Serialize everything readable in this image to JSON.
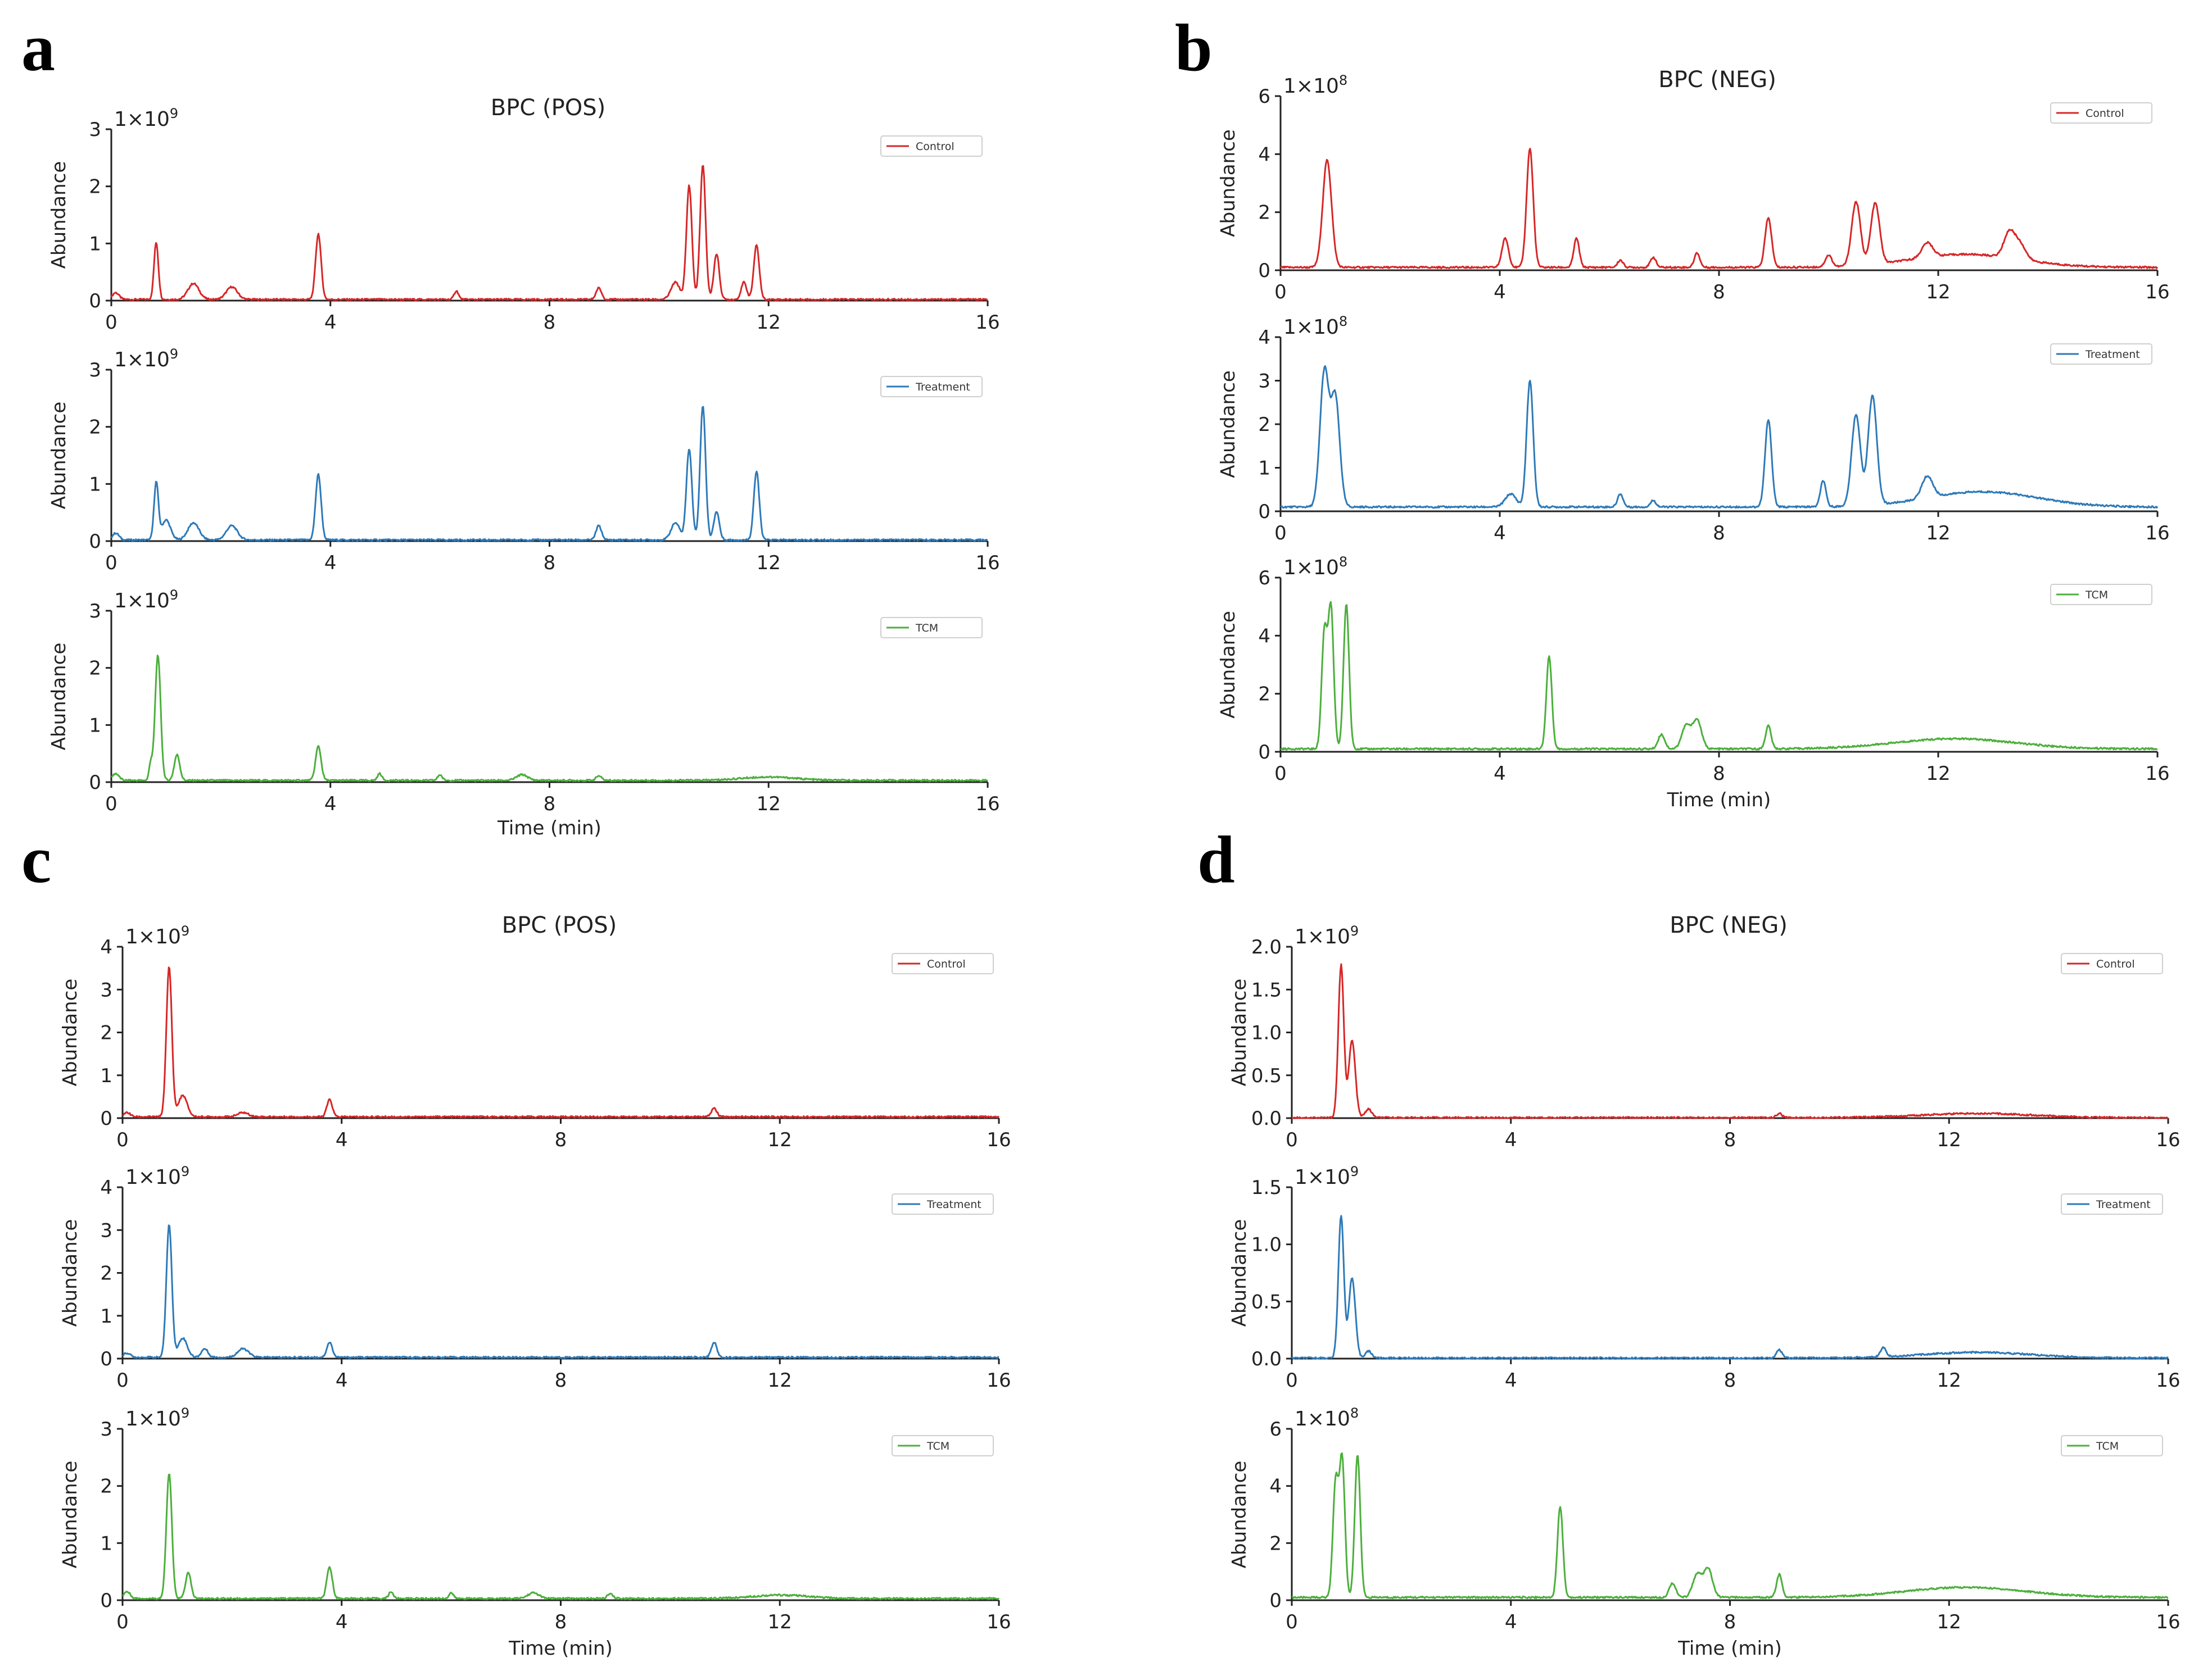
{
  "colors": {
    "Control": "#d62728",
    "Treatment": "#2e7ab8",
    "TCM": "#4caf3c",
    "axis": "#222222"
  },
  "chart_data": [
    {
      "panel": "a",
      "type": "line",
      "title": "BPC (POS)",
      "xlabel": "Time (min)",
      "xlim": [
        0,
        16
      ],
      "xticks": [
        "0",
        "4",
        "8",
        "12",
        "16"
      ],
      "subplots": [
        {
          "series": "Control",
          "ylabel": "Abundance",
          "exponent": "1×10",
          "exponent_power": "9",
          "ylim": [
            0,
            3
          ],
          "yticks": [
            "0",
            "1",
            "2",
            "3"
          ],
          "baseline": 0.02,
          "peaks": [
            [
              0.08,
              0.12,
              0.06
            ],
            [
              0.82,
              1.0,
              0.04
            ],
            [
              1.5,
              0.28,
              0.1
            ],
            [
              2.2,
              0.22,
              0.1
            ],
            [
              3.78,
              1.15,
              0.05
            ],
            [
              6.3,
              0.15,
              0.04
            ],
            [
              8.9,
              0.2,
              0.05
            ],
            [
              10.3,
              0.3,
              0.08
            ],
            [
              10.55,
              2.0,
              0.05
            ],
            [
              10.8,
              2.35,
              0.05
            ],
            [
              11.05,
              0.8,
              0.05
            ],
            [
              11.55,
              0.3,
              0.05
            ],
            [
              11.78,
              0.95,
              0.05
            ]
          ]
        },
        {
          "series": "Treatment",
          "ylabel": "Abundance",
          "exponent": "1×10",
          "exponent_power": "9",
          "ylim": [
            0,
            3
          ],
          "yticks": [
            "0",
            "1",
            "2",
            "3"
          ],
          "baseline": 0.02,
          "peaks": [
            [
              0.08,
              0.12,
              0.06
            ],
            [
              0.82,
              1.0,
              0.04
            ],
            [
              1.0,
              0.35,
              0.08
            ],
            [
              1.5,
              0.3,
              0.1
            ],
            [
              2.2,
              0.25,
              0.1
            ],
            [
              3.78,
              1.15,
              0.05
            ],
            [
              8.9,
              0.25,
              0.05
            ],
            [
              10.3,
              0.3,
              0.08
            ],
            [
              10.55,
              1.6,
              0.05
            ],
            [
              10.8,
              2.35,
              0.05
            ],
            [
              11.05,
              0.5,
              0.05
            ],
            [
              11.78,
              1.2,
              0.05
            ]
          ]
        },
        {
          "series": "TCM",
          "ylabel": "Abundance",
          "exponent": "1×10",
          "exponent_power": "9",
          "ylim": [
            0,
            3
          ],
          "yticks": [
            "0",
            "1",
            "2",
            "3"
          ],
          "baseline": 0.03,
          "peaks": [
            [
              0.08,
              0.12,
              0.06
            ],
            [
              0.72,
              0.3,
              0.03
            ],
            [
              0.85,
              2.2,
              0.05
            ],
            [
              1.2,
              0.45,
              0.05
            ],
            [
              3.78,
              0.6,
              0.05
            ],
            [
              4.9,
              0.12,
              0.04
            ],
            [
              6.0,
              0.1,
              0.04
            ],
            [
              7.5,
              0.1,
              0.1
            ],
            [
              8.9,
              0.08,
              0.05
            ],
            [
              12.0,
              0.06,
              0.5
            ]
          ]
        }
      ]
    },
    {
      "panel": "b",
      "type": "line",
      "title": "BPC (NEG)",
      "xlabel": "Time (min)",
      "xlim": [
        0,
        16
      ],
      "xticks": [
        "0",
        "4",
        "8",
        "12",
        "16"
      ],
      "subplots": [
        {
          "series": "Control",
          "ylabel": "Abundance",
          "exponent": "1×10",
          "exponent_power": "8",
          "ylim": [
            0,
            6
          ],
          "yticks": [
            "0",
            "2",
            "4",
            "6"
          ],
          "baseline": 0.1,
          "peaks": [
            [
              0.85,
              3.7,
              0.08
            ],
            [
              4.1,
              1.0,
              0.06
            ],
            [
              4.55,
              4.1,
              0.06
            ],
            [
              5.4,
              1.0,
              0.05
            ],
            [
              6.2,
              0.25,
              0.05
            ],
            [
              6.8,
              0.35,
              0.05
            ],
            [
              7.6,
              0.5,
              0.05
            ],
            [
              8.9,
              1.7,
              0.06
            ],
            [
              10.0,
              0.4,
              0.06
            ],
            [
              10.5,
              2.2,
              0.08
            ],
            [
              10.85,
              2.1,
              0.08
            ],
            [
              11.8,
              0.5,
              0.1
            ],
            [
              12.5,
              0.45,
              1.0
            ],
            [
              13.3,
              0.9,
              0.1
            ],
            [
              13.5,
              0.5,
              0.1
            ]
          ]
        },
        {
          "series": "Treatment",
          "ylabel": "Abundance",
          "exponent": "1×10",
          "exponent_power": "8",
          "ylim": [
            0,
            4
          ],
          "yticks": [
            "0",
            "1",
            "2",
            "3",
            "4"
          ],
          "baseline": 0.1,
          "peaks": [
            [
              0.8,
              3.1,
              0.08
            ],
            [
              1.0,
              2.5,
              0.08
            ],
            [
              4.2,
              0.3,
              0.1
            ],
            [
              4.55,
              2.9,
              0.06
            ],
            [
              6.2,
              0.3,
              0.05
            ],
            [
              6.8,
              0.15,
              0.05
            ],
            [
              8.9,
              2.0,
              0.06
            ],
            [
              9.9,
              0.6,
              0.05
            ],
            [
              10.5,
              2.1,
              0.08
            ],
            [
              10.8,
              2.5,
              0.08
            ],
            [
              11.8,
              0.5,
              0.1
            ],
            [
              12.8,
              0.35,
              1.0
            ]
          ]
        },
        {
          "series": "TCM",
          "ylabel": "Abundance",
          "exponent": "1×10",
          "exponent_power": "8",
          "ylim": [
            0,
            6
          ],
          "yticks": [
            "0",
            "2",
            "4",
            "6"
          ],
          "baseline": 0.1,
          "peaks": [
            [
              0.8,
              4.0,
              0.05
            ],
            [
              0.92,
              4.8,
              0.05
            ],
            [
              1.2,
              5.0,
              0.05
            ],
            [
              4.9,
              3.2,
              0.05
            ],
            [
              6.95,
              0.5,
              0.06
            ],
            [
              7.4,
              0.8,
              0.08
            ],
            [
              7.6,
              1.0,
              0.08
            ],
            [
              8.9,
              0.8,
              0.05
            ],
            [
              12.3,
              0.35,
              1.1
            ]
          ]
        }
      ]
    },
    {
      "panel": "c",
      "type": "line",
      "title": "BPC (POS)",
      "xlabel": "Time (min)",
      "xlim": [
        0,
        16
      ],
      "xticks": [
        "0",
        "4",
        "8",
        "12",
        "16"
      ],
      "subplots": [
        {
          "series": "Control",
          "ylabel": "Abundance",
          "exponent": "1×10",
          "exponent_power": "9",
          "ylim": [
            0,
            4
          ],
          "yticks": [
            "0",
            "1",
            "2",
            "3",
            "4"
          ],
          "baseline": 0.03,
          "peaks": [
            [
              0.08,
              0.1,
              0.06
            ],
            [
              0.85,
              3.5,
              0.05
            ],
            [
              1.1,
              0.5,
              0.08
            ],
            [
              2.2,
              0.1,
              0.1
            ],
            [
              3.78,
              0.4,
              0.05
            ],
            [
              10.8,
              0.2,
              0.05
            ]
          ]
        },
        {
          "series": "Treatment",
          "ylabel": "Abundance",
          "exponent": "1×10",
          "exponent_power": "9",
          "ylim": [
            0,
            4
          ],
          "yticks": [
            "0",
            "1",
            "2",
            "3",
            "4"
          ],
          "baseline": 0.03,
          "peaks": [
            [
              0.08,
              0.1,
              0.06
            ],
            [
              0.85,
              3.1,
              0.05
            ],
            [
              1.1,
              0.45,
              0.08
            ],
            [
              1.5,
              0.2,
              0.06
            ],
            [
              2.2,
              0.2,
              0.1
            ],
            [
              3.78,
              0.35,
              0.05
            ],
            [
              10.8,
              0.35,
              0.05
            ]
          ]
        },
        {
          "series": "TCM",
          "ylabel": "Abundance",
          "exponent": "1×10",
          "exponent_power": "9",
          "ylim": [
            0,
            3
          ],
          "yticks": [
            "0",
            "1",
            "2",
            "3"
          ],
          "baseline": 0.03,
          "peaks": [
            [
              0.08,
              0.12,
              0.06
            ],
            [
              0.85,
              2.2,
              0.05
            ],
            [
              1.2,
              0.45,
              0.05
            ],
            [
              3.78,
              0.55,
              0.05
            ],
            [
              4.9,
              0.12,
              0.04
            ],
            [
              6.0,
              0.1,
              0.04
            ],
            [
              7.5,
              0.1,
              0.1
            ],
            [
              8.9,
              0.08,
              0.05
            ],
            [
              12.0,
              0.06,
              0.5
            ]
          ]
        }
      ]
    },
    {
      "panel": "d",
      "type": "line",
      "title": "BPC (NEG)",
      "xlabel": "Time (min)",
      "xlim": [
        0,
        16
      ],
      "xticks": [
        "0",
        "4",
        "8",
        "12",
        "16"
      ],
      "subplots": [
        {
          "series": "Control",
          "ylabel": "Abundance",
          "exponent": "1×10",
          "exponent_power": "9",
          "ylim": [
            0,
            2
          ],
          "yticks": [
            "0.0",
            "0.5",
            "1.0",
            "1.5",
            "2.0"
          ],
          "baseline": 0.005,
          "peaks": [
            [
              0.9,
              1.78,
              0.05
            ],
            [
              1.1,
              0.9,
              0.06
            ],
            [
              1.4,
              0.1,
              0.06
            ],
            [
              8.9,
              0.05,
              0.05
            ],
            [
              12.5,
              0.05,
              1.0
            ]
          ]
        },
        {
          "series": "Treatment",
          "ylabel": "Abundance",
          "exponent": "1×10",
          "exponent_power": "9",
          "ylim": [
            0,
            1.5
          ],
          "yticks": [
            "0.0",
            "0.5",
            "1.0",
            "1.5"
          ],
          "baseline": 0.005,
          "peaks": [
            [
              0.9,
              1.25,
              0.05
            ],
            [
              1.1,
              0.7,
              0.06
            ],
            [
              1.4,
              0.06,
              0.06
            ],
            [
              8.9,
              0.07,
              0.05
            ],
            [
              10.8,
              0.08,
              0.05
            ],
            [
              12.5,
              0.05,
              1.0
            ]
          ]
        },
        {
          "series": "TCM",
          "ylabel": "Abundance",
          "exponent": "1×10",
          "exponent_power": "8",
          "ylim": [
            0,
            6
          ],
          "yticks": [
            "0",
            "2",
            "4",
            "6"
          ],
          "baseline": 0.1,
          "peaks": [
            [
              0.8,
              4.0,
              0.05
            ],
            [
              0.92,
              4.8,
              0.05
            ],
            [
              1.2,
              5.0,
              0.05
            ],
            [
              4.9,
              3.2,
              0.05
            ],
            [
              6.95,
              0.5,
              0.06
            ],
            [
              7.4,
              0.8,
              0.08
            ],
            [
              7.6,
              1.0,
              0.08
            ],
            [
              8.9,
              0.8,
              0.05
            ],
            [
              12.3,
              0.35,
              1.1
            ]
          ]
        }
      ]
    }
  ]
}
